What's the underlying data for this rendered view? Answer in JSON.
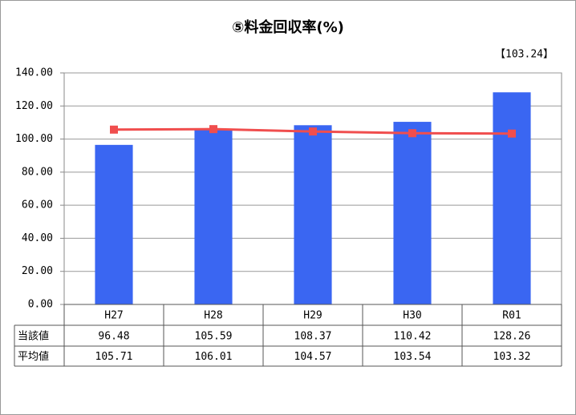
{
  "chart_data": {
    "type": "bar",
    "title": "⑤料金回収率(%)",
    "annotation": "【103.24】",
    "categories": [
      "H27",
      "H28",
      "H29",
      "H30",
      "R01"
    ],
    "series": [
      {
        "name": "当該値",
        "type": "bar",
        "color": "#3a66f2",
        "values": [
          96.48,
          105.59,
          108.37,
          110.42,
          128.26
        ]
      },
      {
        "name": "平均値",
        "type": "line",
        "color": "#f04e4e",
        "values": [
          105.71,
          106.01,
          104.57,
          103.54,
          103.32
        ]
      }
    ],
    "ylim": [
      0,
      140
    ],
    "yticks": [
      {
        "value": 0,
        "label": "0.00"
      },
      {
        "value": 20,
        "label": "20.00"
      },
      {
        "value": 40,
        "label": "40.00"
      },
      {
        "value": 60,
        "label": "60.00"
      },
      {
        "value": 80,
        "label": "80.00"
      },
      {
        "value": 100,
        "label": "100.00"
      },
      {
        "value": 120,
        "label": "120.00"
      },
      {
        "value": 140,
        "label": "140.00"
      }
    ],
    "grid": true
  }
}
